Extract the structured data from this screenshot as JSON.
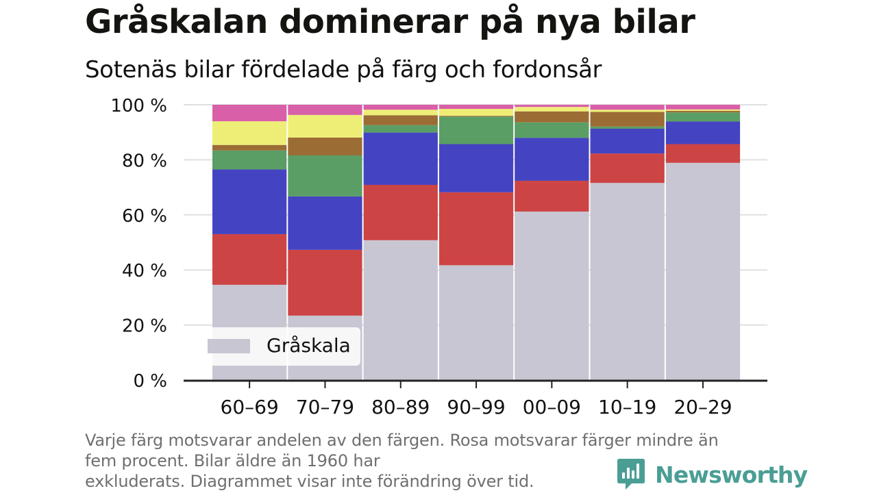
{
  "title": "Gråskalan dominerar på nya bilar",
  "subtitle": "Sotenäs bilar fördelade på färg och fordonsår",
  "note_lines": [
    "Varje färg motsvarar andelen av den färgen. Rosa motsvarar färger mindre än",
    "fem procent. Bilar äldre än 1960 har",
    "exkluderats. Diagrammet visar inte förändring över tid."
  ],
  "brand": {
    "name": "Newsworthy",
    "color": "#4a9e94",
    "icon": "newsworthy-chart-bubble-icon"
  },
  "colors": {
    "grid": "#e0e0e0",
    "axis": "#222222",
    "tick_text": "#111111",
    "separator": "#ffffff"
  },
  "chart_data": {
    "type": "bar",
    "stacked": true,
    "categories": [
      "60–69",
      "70–79",
      "80–89",
      "90–99",
      "00–09",
      "10–19",
      "20–29"
    ],
    "series": [
      {
        "name": "Gråskala",
        "color": "#c8c6d2",
        "values": [
          34.6,
          23.4,
          50.8,
          41.7,
          61.2,
          71.6,
          78.9
        ]
      },
      {
        "color": "#cd4444",
        "values": [
          18.4,
          23.9,
          20.1,
          26.5,
          11.2,
          10.7,
          6.8
        ]
      },
      {
        "color": "#4444c2",
        "values": [
          23.5,
          19.4,
          19.0,
          17.5,
          15.6,
          9.0,
          8.2
        ]
      },
      {
        "color": "#5a9e65",
        "values": [
          6.9,
          14.9,
          2.7,
          10.0,
          5.6,
          0.8,
          3.3
        ]
      },
      {
        "color": "#9b6c34",
        "values": [
          2.0,
          6.5,
          3.6,
          0.3,
          4.0,
          5.3,
          0.6
        ]
      },
      {
        "color": "#eeee77",
        "values": [
          8.6,
          8.2,
          2.0,
          2.5,
          1.6,
          0.8,
          0.5
        ]
      },
      {
        "color": "#d95fa8",
        "values": [
          6.0,
          3.7,
          1.8,
          1.5,
          0.8,
          2.5,
          2.0
        ]
      }
    ],
    "ylim": [
      0,
      100
    ],
    "yticks": [
      "0 %",
      "20 %",
      "40 %",
      "60 %",
      "80 %",
      "100 %"
    ],
    "ytick_values": [
      0,
      20,
      40,
      60,
      80,
      100
    ],
    "grid": true,
    "legend": {
      "position": "bottom-left",
      "entries": [
        "Gråskala"
      ]
    },
    "xlabel": "",
    "ylabel": ""
  }
}
